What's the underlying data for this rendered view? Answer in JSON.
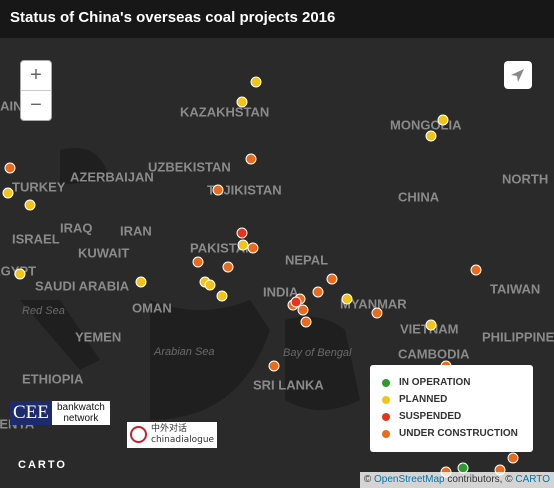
{
  "header": {
    "title": "Status of China's overseas coal projects 2016"
  },
  "controls": {
    "zoom_in": "+",
    "zoom_out": "−"
  },
  "map": {
    "labels": [
      "UKRAINE",
      "KAZAKHSTAN",
      "MONGOLIA",
      "UZBEKISTAN",
      "AZERBAIJAN",
      "TURKEY",
      "TAJIKISTAN",
      "NORTH",
      "CHINA",
      "IRAQ",
      "IRAN",
      "ISRAEL",
      "KUWAIT",
      "PAKISTAN",
      "NEPAL",
      "TAIWAN",
      "SAUDI ARABIA",
      "EGYPT",
      "Red Sea",
      "OMAN",
      "INDIA",
      "MYANMAR",
      "VIETNAM",
      "PHILIPPINES",
      "YEMEN",
      "Arabian Sea",
      "Bay of Bengal",
      "CAMBODIA",
      "ETHIOPIA",
      "SRI LANKA",
      "KENYA"
    ]
  },
  "legend": {
    "items": [
      {
        "label": "IN OPERATION",
        "color": "#2e9a2e"
      },
      {
        "label": "PLANNED",
        "color": "#f2c418"
      },
      {
        "label": "SUSPENDED",
        "color": "#e8321e"
      },
      {
        "label": "UNDER CONSTRUCTION",
        "color": "#eb6a1c"
      }
    ]
  },
  "logos": {
    "cee": "CEE",
    "bankwatch": "bankwatch network",
    "cd_cn": "中外对话",
    "cd": "chinadialogue",
    "carto": "CARTO"
  },
  "attribution": {
    "prefix": "©",
    "osm": "OpenStreetMap",
    "mid": "contributors, ©",
    "carto": "CARTO"
  }
}
